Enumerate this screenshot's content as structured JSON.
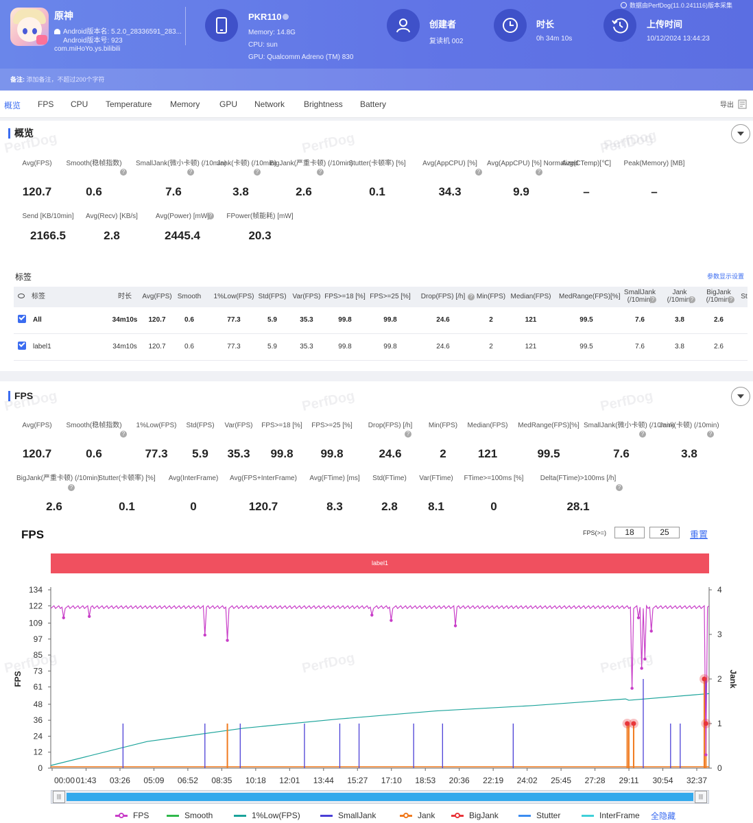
{
  "header": {
    "app_name": "原神",
    "android_version_name": "Android版本名: 5.2.0_28336591_283...",
    "android_version_code": "Android版本号: 923",
    "package": "com.miHoYo.ys.bilibili",
    "device_name": "PKR110",
    "memory": "Memory: 14.8G",
    "cpu": "CPU: sun",
    "gpu": "GPU: Qualcomm Adreno (TM) 830",
    "creator_label": "创建者",
    "creator_value": "复读机 002",
    "duration_label": "时长",
    "duration_value": "0h 34m 10s",
    "upload_label": "上传时间",
    "upload_value": "10/12/2024 13:44:23",
    "source_note": "数据由PerfDog(11.0.241116)版本采集",
    "note_label": "备注:",
    "note_placeholder": "添加备注，不超过200个字符"
  },
  "tabs": [
    "概览",
    "FPS",
    "CPU",
    "Temperature",
    "Memory",
    "GPU",
    "Network",
    "Brightness",
    "Battery"
  ],
  "export_label": "导出",
  "watermark": "PerfDog",
  "overview": {
    "title": "概览",
    "row1": [
      {
        "label": "Avg(FPS)",
        "value": "120.7"
      },
      {
        "label": "Smooth(稳帧指数)",
        "value": "0.6"
      },
      {
        "label": "SmallJank(微小卡顿)\n(/10min)",
        "value": "7.6"
      },
      {
        "label": "Jank(卡顿)\n(/10min)",
        "value": "3.8"
      },
      {
        "label": "BigJank(严重卡顿)\n(/10min)",
        "value": "2.6"
      },
      {
        "label": "Stutter(卡顿率) [%]",
        "value": "0.1"
      },
      {
        "label": "Avg(AppCPU) [%]",
        "value": "34.3"
      },
      {
        "label": "Avg(AppCPU) [%]\nNormalized",
        "value": "9.9"
      },
      {
        "label": "Avg(CTemp)[℃]",
        "value": "–"
      },
      {
        "label": "Peak(Memory) [MB]",
        "value": "–"
      }
    ],
    "row2": [
      {
        "label": "Send [KB/10min]",
        "value": "2166.5"
      },
      {
        "label": "Avg(Recv) [KB/s]",
        "value": "2.8"
      },
      {
        "label": "Avg(Power) [mW]",
        "value": "2445.4"
      },
      {
        "label": "FPower(帧能耗) [mW]",
        "value": "20.3"
      }
    ]
  },
  "labels": {
    "title": "标签",
    "settings_link": "参数显示设置",
    "headers": [
      "标签",
      "时长",
      "Avg(FPS)",
      "Smooth",
      "1%Low(FPS)",
      "Std(FPS)",
      "Var(FPS)",
      "FPS>=18 [%]",
      "FPS>=25 [%]",
      "Drop(FPS) [/h]",
      "Min(FPS)",
      "Median(FPS)",
      "MedRange(FPS)[%]",
      "SmallJank\n(/10min)",
      "Jank\n(/10min)",
      "BigJank\n(/10min)",
      "St"
    ],
    "rows": [
      [
        "All",
        "34m10s",
        "120.7",
        "0.6",
        "77.3",
        "5.9",
        "35.3",
        "99.8",
        "99.8",
        "24.6",
        "2",
        "121",
        "99.5",
        "7.6",
        "3.8",
        "2.6"
      ],
      [
        "label1",
        "34m10s",
        "120.7",
        "0.6",
        "77.3",
        "5.9",
        "35.3",
        "99.8",
        "99.8",
        "24.6",
        "2",
        "121",
        "99.5",
        "7.6",
        "3.8",
        "2.6"
      ]
    ]
  },
  "fps_section": {
    "title": "FPS",
    "row1": [
      {
        "label": "Avg(FPS)",
        "value": "120.7"
      },
      {
        "label": "Smooth(稳帧指数)",
        "value": "0.6"
      },
      {
        "label": "1%Low(FPS)",
        "value": "77.3"
      },
      {
        "label": "Std(FPS)",
        "value": "5.9"
      },
      {
        "label": "Var(FPS)",
        "value": "35.3"
      },
      {
        "label": "FPS>=18 [%]",
        "value": "99.8"
      },
      {
        "label": "FPS>=25 [%]",
        "value": "99.8"
      },
      {
        "label": "Drop(FPS) [/h]",
        "value": "24.6"
      },
      {
        "label": "Min(FPS)",
        "value": "2"
      },
      {
        "label": "Median(FPS)",
        "value": "121"
      },
      {
        "label": "MedRange(FPS)[%]",
        "value": "99.5"
      },
      {
        "label": "SmallJank(微小卡顿)\n(/10min)",
        "value": "7.6"
      },
      {
        "label": "Jank(卡顿)\n(/10min)",
        "value": "3.8"
      }
    ],
    "row2": [
      {
        "label": "BigJank(严重卡顿)\n(/10min)",
        "value": "2.6"
      },
      {
        "label": "Stutter(卡顿率) [%]",
        "value": "0.1"
      },
      {
        "label": "Avg(InterFrame)",
        "value": "0"
      },
      {
        "label": "Avg(FPS+InterFrame)",
        "value": "120.7"
      },
      {
        "label": "Avg(FTime) [ms]",
        "value": "8.3"
      },
      {
        "label": "Std(FTime)",
        "value": "2.8"
      },
      {
        "label": "Var(FTime)",
        "value": "8.1"
      },
      {
        "label": "FTime>=100ms [%]",
        "value": "0"
      },
      {
        "label": "Delta(FTime)>100ms [/h]",
        "value": "28.1"
      }
    ],
    "chart_title": "FPS",
    "threshold_label": "FPS(>=)",
    "threshold1": "18",
    "threshold2": "25",
    "reset_label": "重置",
    "band_label": "label1",
    "hide_all": "全隐藏"
  },
  "chart_data": {
    "type": "line",
    "title": "FPS",
    "ylabel": "FPS",
    "y2label": "Jank",
    "y_ticks": [
      0,
      12,
      24,
      36,
      48,
      61,
      73,
      85,
      97,
      109,
      122,
      134
    ],
    "y2_ticks": [
      0,
      1,
      2,
      3,
      4
    ],
    "ylim": [
      0,
      134
    ],
    "y2lim": [
      0,
      4
    ],
    "x_ticks": [
      "00:00",
      "01:43",
      "03:26",
      "05:09",
      "06:52",
      "08:35",
      "10:18",
      "12:01",
      "13:44",
      "15:27",
      "17:10",
      "18:53",
      "20:36",
      "22:19",
      "24:02",
      "25:45",
      "27:28",
      "29:11",
      "30:54",
      "32:37"
    ],
    "x_range_seconds": [
      0,
      2050
    ],
    "fps_baseline": 121,
    "fps_dips": [
      [
        40,
        113
      ],
      [
        120,
        114
      ],
      [
        480,
        100
      ],
      [
        550,
        96
      ],
      [
        1000,
        115
      ],
      [
        1060,
        111
      ],
      [
        1260,
        107
      ],
      [
        1810,
        60
      ],
      [
        1830,
        113
      ],
      [
        1840,
        75
      ],
      [
        1850,
        82
      ],
      [
        1870,
        103
      ],
      [
        2040,
        10
      ]
    ],
    "low1_fps_points": [
      [
        0,
        2
      ],
      [
        300,
        20
      ],
      [
        600,
        30
      ],
      [
        900,
        37
      ],
      [
        1200,
        43
      ],
      [
        1500,
        47
      ],
      [
        1790,
        52
      ],
      [
        1800,
        51
      ],
      [
        2050,
        56
      ]
    ],
    "small_jank_spikes": [
      [
        225,
        1
      ],
      [
        480,
        1
      ],
      [
        590,
        1
      ],
      [
        790,
        1
      ],
      [
        900,
        1
      ],
      [
        960,
        1
      ],
      [
        1130,
        1
      ],
      [
        1220,
        1
      ],
      [
        1440,
        1
      ],
      [
        1845,
        2
      ],
      [
        1930,
        1
      ],
      [
        1960,
        1
      ],
      [
        2040,
        2
      ]
    ],
    "jank_spikes": [
      [
        550,
        1
      ],
      [
        1795,
        1
      ],
      [
        1800,
        1
      ],
      [
        1815,
        1
      ],
      [
        2035,
        2
      ],
      [
        2040,
        1
      ]
    ],
    "big_jank_points": [
      [
        1795,
        1
      ],
      [
        1815,
        1
      ],
      [
        2035,
        2
      ],
      [
        2040,
        1
      ]
    ],
    "series": [
      {
        "name": "FPS",
        "color": "#c83ec8"
      },
      {
        "name": "Smooth",
        "color": "#2fb84a"
      },
      {
        "name": "1%Low(FPS)",
        "color": "#1aa39a"
      },
      {
        "name": "SmallJank",
        "color": "#4a3fd6"
      },
      {
        "name": "Jank",
        "color": "#f07a1e"
      },
      {
        "name": "BigJank",
        "color": "#e8353a"
      },
      {
        "name": "Stutter",
        "color": "#3b8cf0"
      },
      {
        "name": "InterFrame",
        "color": "#3fd0d8"
      }
    ]
  }
}
